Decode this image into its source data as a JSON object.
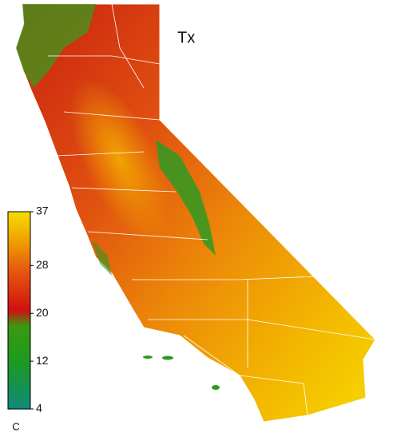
{
  "map": {
    "title": "Tx",
    "colorbar": {
      "lim": [
        4,
        37
      ],
      "ticks": [
        37,
        28,
        20,
        12,
        4
      ],
      "unit": "C"
    }
  }
}
